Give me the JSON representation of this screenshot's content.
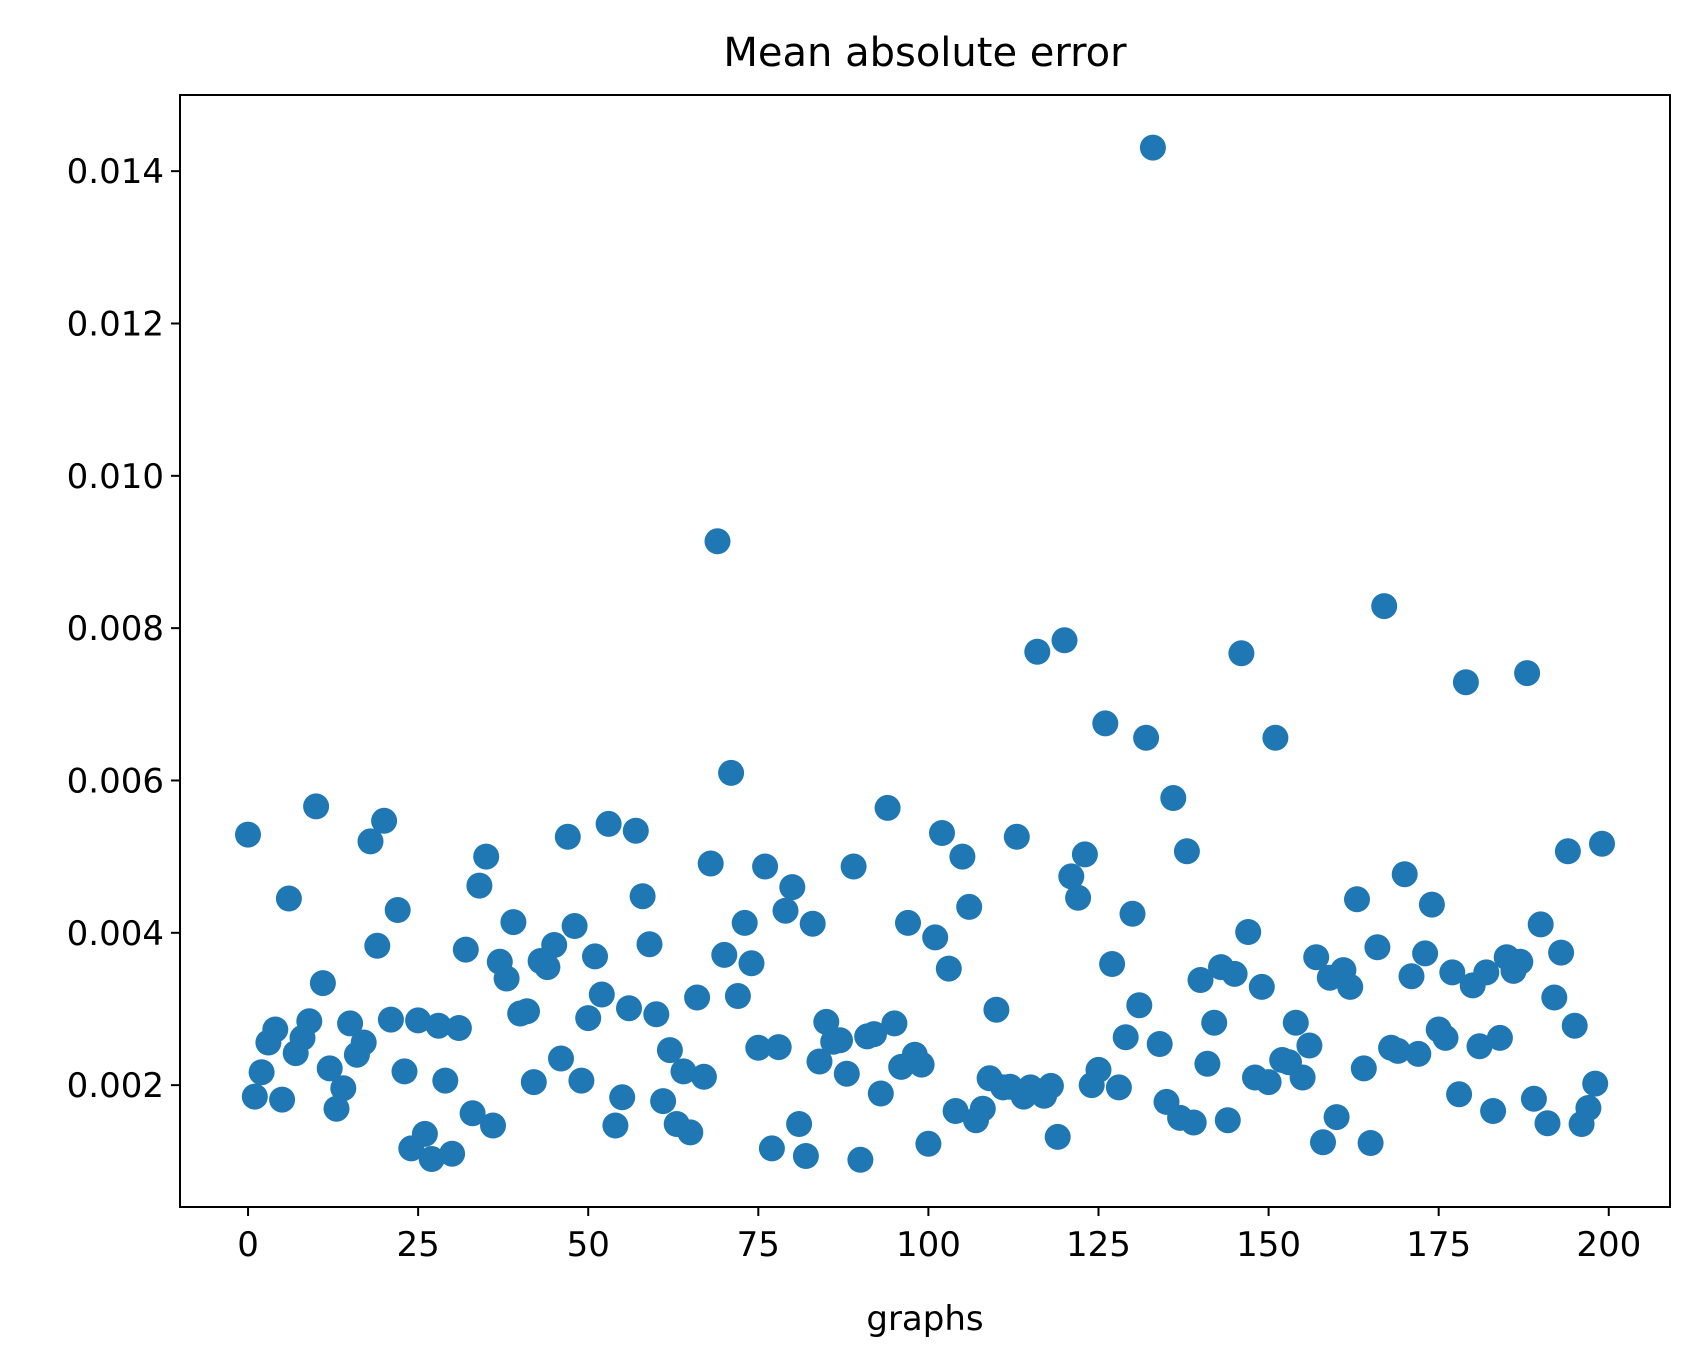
{
  "chart_data": {
    "type": "scatter",
    "title": "Mean absolute error",
    "xlabel": "graphs",
    "ylabel": "",
    "xlim": [
      -10,
      209
    ],
    "ylim": [
      0.0004,
      0.015
    ],
    "xticks": [
      0,
      25,
      50,
      75,
      100,
      125,
      150,
      175,
      200
    ],
    "xtick_labels": [
      "0",
      "25",
      "50",
      "75",
      "100",
      "125",
      "150",
      "175",
      "200"
    ],
    "yticks": [
      0.002,
      0.004,
      0.006,
      0.008,
      0.01,
      0.012,
      0.014
    ],
    "ytick_labels": [
      "0.002",
      "0.004",
      "0.006",
      "0.008",
      "0.010",
      "0.012",
      "0.014"
    ],
    "grid": false,
    "marker_color": "#1f77b4",
    "x": [
      0,
      1,
      2,
      3,
      4,
      5,
      6,
      7,
      8,
      9,
      10,
      11,
      12,
      13,
      14,
      15,
      16,
      17,
      18,
      19,
      20,
      21,
      22,
      23,
      24,
      25,
      26,
      27,
      28,
      29,
      30,
      31,
      32,
      33,
      34,
      35,
      36,
      37,
      38,
      39,
      40,
      41,
      42,
      43,
      44,
      45,
      46,
      47,
      48,
      49,
      50,
      51,
      52,
      53,
      54,
      55,
      56,
      57,
      58,
      59,
      60,
      61,
      62,
      63,
      64,
      65,
      66,
      67,
      68,
      69,
      70,
      71,
      72,
      73,
      74,
      75,
      76,
      77,
      78,
      79,
      80,
      81,
      82,
      83,
      84,
      85,
      86,
      87,
      88,
      89,
      90,
      91,
      92,
      93,
      94,
      95,
      96,
      97,
      98,
      99,
      100,
      101,
      102,
      103,
      104,
      105,
      106,
      107,
      108,
      109,
      110,
      111,
      112,
      113,
      114,
      115,
      116,
      117,
      118,
      119,
      120,
      121,
      122,
      123,
      124,
      125,
      126,
      127,
      128,
      129,
      130,
      131,
      132,
      133,
      134,
      135,
      136,
      137,
      138,
      139,
      140,
      141,
      142,
      143,
      144,
      145,
      146,
      147,
      148,
      149,
      150,
      151,
      152,
      153,
      154,
      155,
      156,
      157,
      158,
      159,
      160,
      161,
      162,
      163,
      164,
      165,
      166,
      167,
      168,
      169,
      170,
      171,
      172,
      173,
      174,
      175,
      176,
      177,
      178,
      179,
      180,
      181,
      182,
      183,
      184,
      185,
      186,
      187,
      188,
      189,
      190,
      191,
      192,
      193,
      194,
      195,
      196,
      197,
      198,
      199
    ],
    "y": [
      0.00529,
      0.00185,
      0.00217,
      0.00256,
      0.00273,
      0.00181,
      0.00445,
      0.00242,
      0.00262,
      0.00284,
      0.00566,
      0.00334,
      0.00222,
      0.00169,
      0.00196,
      0.00281,
      0.0024,
      0.00256,
      0.0052,
      0.00383,
      0.00547,
      0.00286,
      0.0043,
      0.00218,
      0.00117,
      0.00285,
      0.00136,
      0.00103,
      0.00278,
      0.00206,
      0.0011,
      0.00275,
      0.00378,
      0.00163,
      0.00462,
      0.005,
      0.00147,
      0.00362,
      0.0034,
      0.00414,
      0.00294,
      0.00297,
      0.00204,
      0.00363,
      0.00355,
      0.00384,
      0.00235,
      0.00526,
      0.00409,
      0.00206,
      0.00288,
      0.00369,
      0.00319,
      0.00543,
      0.00147,
      0.00184,
      0.00301,
      0.00534,
      0.00448,
      0.00385,
      0.00293,
      0.00179,
      0.00246,
      0.00149,
      0.00218,
      0.00138,
      0.00315,
      0.00211,
      0.00491,
      0.00914,
      0.00371,
      0.0061,
      0.00317,
      0.00413,
      0.0036,
      0.00249,
      0.00487,
      0.00117,
      0.0025,
      0.00429,
      0.0046,
      0.00149,
      0.00107,
      0.00412,
      0.00231,
      0.00283,
      0.00257,
      0.00259,
      0.00215,
      0.00487,
      0.00102,
      0.00264,
      0.00267,
      0.00189,
      0.00564,
      0.00281,
      0.00224,
      0.00413,
      0.0024,
      0.00227,
      0.00123,
      0.00394,
      0.00531,
      0.00353,
      0.00166,
      0.005,
      0.00434,
      0.00154,
      0.00169,
      0.00209,
      0.00299,
      0.00197,
      0.00198,
      0.00526,
      0.00185,
      0.00197,
      0.00769,
      0.00186,
      0.00199,
      0.00132,
      0.00784,
      0.00474,
      0.00446,
      0.00503,
      0.002,
      0.0022,
      0.00675,
      0.00359,
      0.00197,
      0.00263,
      0.00425,
      0.00305,
      0.00656,
      0.01431,
      0.00254,
      0.00178,
      0.00577,
      0.00157,
      0.00507,
      0.00151,
      0.00338,
      0.00228,
      0.00282,
      0.00355,
      0.00154,
      0.00346,
      0.00767,
      0.00401,
      0.0021,
      0.00329,
      0.00204,
      0.00656,
      0.00233,
      0.0023,
      0.00282,
      0.0021,
      0.00252,
      0.00368,
      0.00125,
      0.00341,
      0.00158,
      0.00351,
      0.00329,
      0.00444,
      0.00222,
      0.00124,
      0.00381,
      0.00829,
      0.00249,
      0.00245,
      0.00477,
      0.00343,
      0.00241,
      0.00373,
      0.00437,
      0.00273,
      0.00262,
      0.00348,
      0.00188,
      0.00729,
      0.00331,
      0.00251,
      0.00348,
      0.00166,
      0.00262,
      0.00368,
      0.0035,
      0.00362,
      0.00741,
      0.00182,
      0.00411,
      0.0015,
      0.00315,
      0.00374,
      0.00507,
      0.00278,
      0.00149,
      0.0017,
      0.00202,
      0.00517
    ]
  }
}
